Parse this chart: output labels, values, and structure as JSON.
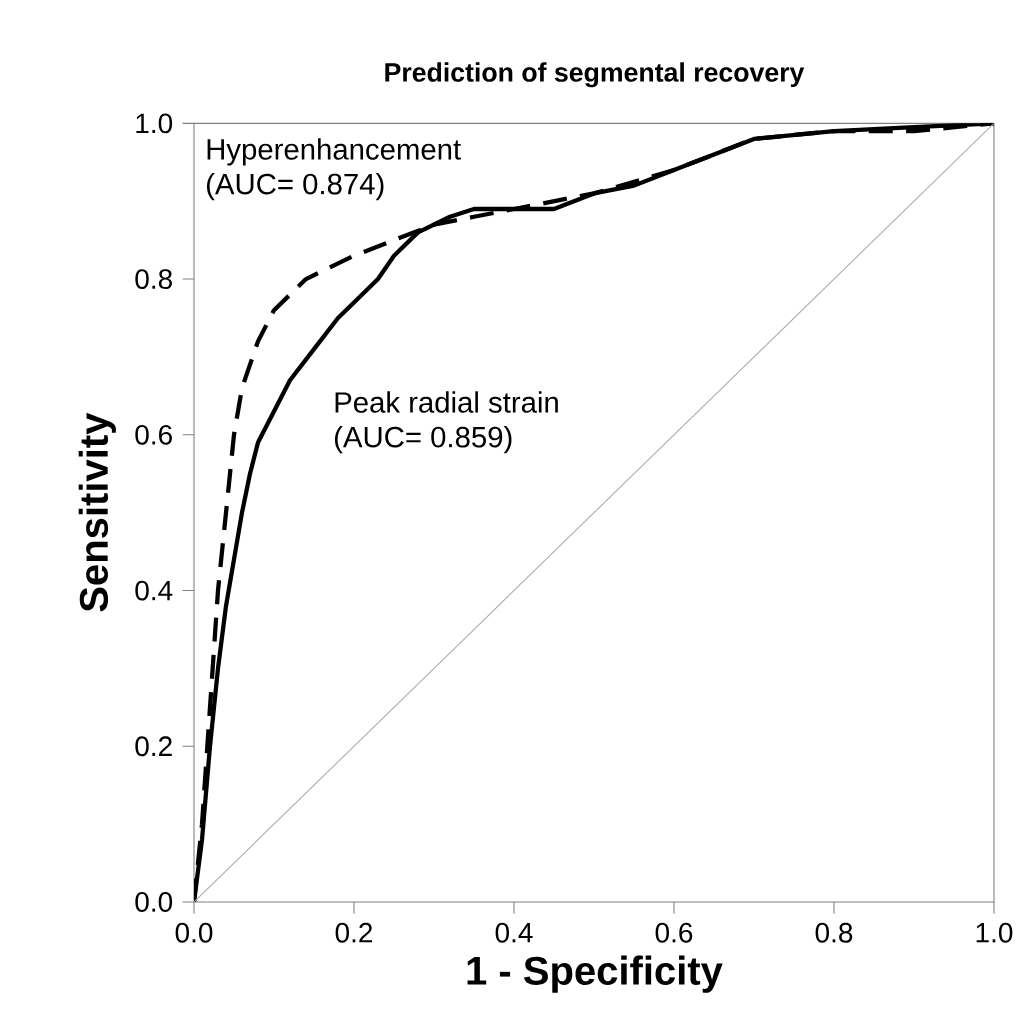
{
  "chart_data": {
    "type": "line",
    "title": "Prediction of segmental recovery",
    "xlabel": "1 - Specificity",
    "ylabel": "Sensitivity",
    "xlim": [
      0,
      1
    ],
    "ylim": [
      0,
      1
    ],
    "xticks": [
      {
        "value": 0,
        "label": "0.0"
      },
      {
        "value": 0.2,
        "label": "0.2"
      },
      {
        "value": 0.4,
        "label": "0.4"
      },
      {
        "value": 0.6,
        "label": "0.6"
      },
      {
        "value": 0.8,
        "label": "0.8"
      },
      {
        "value": 1,
        "label": "1.0"
      }
    ],
    "yticks": [
      {
        "value": 0,
        "label": "0.0"
      },
      {
        "value": 0.2,
        "label": "0.2"
      },
      {
        "value": 0.4,
        "label": "0.4"
      },
      {
        "value": 0.6,
        "label": "0.6"
      },
      {
        "value": 0.8,
        "label": "0.8"
      },
      {
        "value": 1,
        "label": "1.0"
      }
    ],
    "grid": false,
    "legend": false,
    "marker": "none",
    "series": [
      {
        "name": "Hyperenhancement",
        "color": "#000000",
        "line_style": "dashed",
        "x": [
          0,
          0.01,
          0.02,
          0.03,
          0.04,
          0.05,
          0.06,
          0.08,
          0.1,
          0.14,
          0.2,
          0.25,
          0.3,
          0.35,
          0.4,
          0.5,
          0.6,
          0.7,
          0.8,
          0.9,
          1
        ],
        "values": [
          0,
          0.1,
          0.25,
          0.4,
          0.5,
          0.6,
          0.66,
          0.72,
          0.76,
          0.8,
          0.83,
          0.85,
          0.87,
          0.88,
          0.89,
          0.91,
          0.94,
          0.98,
          0.99,
          0.99,
          1
        ]
      },
      {
        "name": "Peak radial strain",
        "color": "#000000",
        "line_style": "solid",
        "x": [
          0,
          0.01,
          0.02,
          0.03,
          0.04,
          0.05,
          0.06,
          0.07,
          0.08,
          0.1,
          0.12,
          0.15,
          0.18,
          0.2,
          0.23,
          0.25,
          0.28,
          0.32,
          0.35,
          0.4,
          0.45,
          0.5,
          0.55,
          0.6,
          0.65,
          0.7,
          0.8,
          0.9,
          1
        ],
        "values": [
          0,
          0.08,
          0.2,
          0.3,
          0.38,
          0.44,
          0.5,
          0.55,
          0.59,
          0.63,
          0.67,
          0.71,
          0.75,
          0.77,
          0.8,
          0.83,
          0.86,
          0.88,
          0.89,
          0.89,
          0.89,
          0.91,
          0.92,
          0.94,
          0.96,
          0.98,
          0.99,
          0.995,
          1
        ]
      },
      {
        "color": "#aaaaaa",
        "line_style": "solid",
        "x": [
          0,
          1
        ],
        "values": [
          0,
          1
        ]
      }
    ],
    "annotations": [
      "(AUC= 0.874)",
      "(AUC= 0.859)"
    ]
  }
}
